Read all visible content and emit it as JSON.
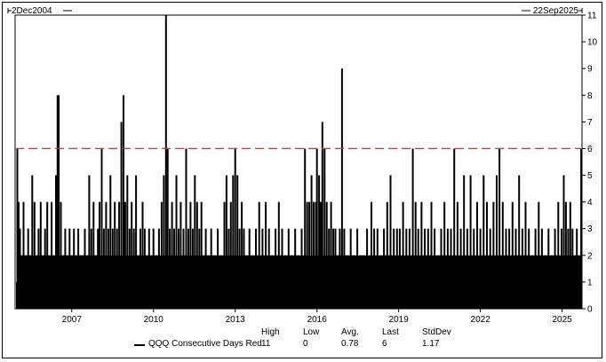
{
  "chart_data": {
    "type": "bar",
    "start_label": "2Dec2004",
    "end_label": "22Sep2025",
    "x_range": [
      2004.92,
      2025.73
    ],
    "ylim": [
      0,
      11
    ],
    "y_ticks": [
      "0",
      "1",
      "2",
      "3",
      "4",
      "5",
      "6",
      "7",
      "8",
      "9",
      "10",
      "11"
    ],
    "x_ticks": [
      {
        "label": "2007",
        "x": 2007.0
      },
      {
        "label": "2010",
        "x": 2010.0
      },
      {
        "label": "2013",
        "x": 2013.0
      },
      {
        "label": "2016",
        "x": 2016.0
      },
      {
        "label": "2019",
        "x": 2019.0
      },
      {
        "label": "2022",
        "x": 2022.0
      },
      {
        "label": "2025",
        "x": 2025.0
      }
    ],
    "threshold": 6,
    "threshold_color": "#e03030",
    "bar_color": "#000000",
    "series": [
      {
        "name": "QQQ Consecutive Days Red",
        "points": [
          [
            2005.0,
            6
          ],
          [
            2005.05,
            4
          ],
          [
            2005.1,
            3
          ],
          [
            2005.16,
            2
          ],
          [
            2005.23,
            4
          ],
          [
            2005.3,
            2
          ],
          [
            2005.4,
            3
          ],
          [
            2005.47,
            2
          ],
          [
            2005.55,
            5
          ],
          [
            2005.63,
            4
          ],
          [
            2005.71,
            2
          ],
          [
            2005.78,
            3
          ],
          [
            2005.86,
            4
          ],
          [
            2005.94,
            2
          ],
          [
            2006.02,
            3
          ],
          [
            2006.1,
            4
          ],
          [
            2006.18,
            2
          ],
          [
            2006.26,
            4
          ],
          [
            2006.34,
            2
          ],
          [
            2006.42,
            5
          ],
          [
            2006.48,
            8
          ],
          [
            2006.52,
            8
          ],
          [
            2006.6,
            4
          ],
          [
            2006.68,
            2
          ],
          [
            2006.76,
            3
          ],
          [
            2006.84,
            2
          ],
          [
            2006.92,
            3
          ],
          [
            2007.0,
            2
          ],
          [
            2007.08,
            3
          ],
          [
            2007.16,
            2
          ],
          [
            2007.24,
            3
          ],
          [
            2007.32,
            2
          ],
          [
            2007.4,
            2
          ],
          [
            2007.48,
            3
          ],
          [
            2007.56,
            2
          ],
          [
            2007.64,
            5
          ],
          [
            2007.72,
            3
          ],
          [
            2007.8,
            4
          ],
          [
            2007.88,
            2
          ],
          [
            2007.96,
            3
          ],
          [
            2008.02,
            4
          ],
          [
            2008.1,
            6
          ],
          [
            2008.18,
            3
          ],
          [
            2008.26,
            4
          ],
          [
            2008.34,
            3
          ],
          [
            2008.42,
            5
          ],
          [
            2008.5,
            3
          ],
          [
            2008.58,
            4
          ],
          [
            2008.66,
            3
          ],
          [
            2008.74,
            4
          ],
          [
            2008.82,
            7
          ],
          [
            2008.9,
            8
          ],
          [
            2008.96,
            4
          ],
          [
            2009.04,
            5
          ],
          [
            2009.12,
            3
          ],
          [
            2009.2,
            4
          ],
          [
            2009.28,
            3
          ],
          [
            2009.36,
            5
          ],
          [
            2009.44,
            2
          ],
          [
            2009.52,
            3
          ],
          [
            2009.6,
            4
          ],
          [
            2009.68,
            3
          ],
          [
            2009.76,
            2
          ],
          [
            2009.84,
            3
          ],
          [
            2009.92,
            2
          ],
          [
            2010.0,
            3
          ],
          [
            2010.1,
            2
          ],
          [
            2010.2,
            3
          ],
          [
            2010.3,
            4
          ],
          [
            2010.38,
            5
          ],
          [
            2010.46,
            11
          ],
          [
            2010.52,
            6
          ],
          [
            2010.6,
            3
          ],
          [
            2010.68,
            4
          ],
          [
            2010.76,
            3
          ],
          [
            2010.84,
            5
          ],
          [
            2010.92,
            3
          ],
          [
            2011.0,
            4
          ],
          [
            2011.1,
            3
          ],
          [
            2011.2,
            6
          ],
          [
            2011.28,
            3
          ],
          [
            2011.36,
            4
          ],
          [
            2011.44,
            3
          ],
          [
            2011.52,
            5
          ],
          [
            2011.6,
            4
          ],
          [
            2011.68,
            3
          ],
          [
            2011.76,
            4
          ],
          [
            2011.84,
            2
          ],
          [
            2011.92,
            3
          ],
          [
            2012.0,
            2
          ],
          [
            2012.12,
            3
          ],
          [
            2012.24,
            2
          ],
          [
            2012.36,
            3
          ],
          [
            2012.48,
            2
          ],
          [
            2012.6,
            4
          ],
          [
            2012.68,
            5
          ],
          [
            2012.76,
            3
          ],
          [
            2012.84,
            4
          ],
          [
            2012.92,
            5
          ],
          [
            2013.0,
            6
          ],
          [
            2013.08,
            5
          ],
          [
            2013.16,
            3
          ],
          [
            2013.24,
            4
          ],
          [
            2013.32,
            3
          ],
          [
            2013.4,
            2
          ],
          [
            2013.52,
            3
          ],
          [
            2013.64,
            2
          ],
          [
            2013.76,
            3
          ],
          [
            2013.88,
            4
          ],
          [
            2014.0,
            3
          ],
          [
            2014.12,
            4
          ],
          [
            2014.24,
            3
          ],
          [
            2014.36,
            2
          ],
          [
            2014.48,
            3
          ],
          [
            2014.6,
            4
          ],
          [
            2014.72,
            3
          ],
          [
            2014.84,
            2
          ],
          [
            2014.96,
            3
          ],
          [
            2015.08,
            2
          ],
          [
            2015.2,
            3
          ],
          [
            2015.32,
            2
          ],
          [
            2015.44,
            3
          ],
          [
            2015.56,
            6
          ],
          [
            2015.64,
            4
          ],
          [
            2015.72,
            4
          ],
          [
            2015.8,
            5
          ],
          [
            2015.88,
            4
          ],
          [
            2015.96,
            4
          ],
          [
            2016.0,
            6
          ],
          [
            2016.08,
            5
          ],
          [
            2016.14,
            4
          ],
          [
            2016.2,
            7
          ],
          [
            2016.28,
            6
          ],
          [
            2016.36,
            4
          ],
          [
            2016.44,
            3
          ],
          [
            2016.52,
            4
          ],
          [
            2016.6,
            3
          ],
          [
            2016.68,
            3
          ],
          [
            2016.76,
            2
          ],
          [
            2016.84,
            3
          ],
          [
            2016.92,
            9
          ],
          [
            2017.0,
            3
          ],
          [
            2017.12,
            2
          ],
          [
            2017.24,
            3
          ],
          [
            2017.36,
            2
          ],
          [
            2017.48,
            3
          ],
          [
            2017.6,
            2
          ],
          [
            2017.72,
            2
          ],
          [
            2017.84,
            3
          ],
          [
            2018.0,
            4
          ],
          [
            2018.1,
            3
          ],
          [
            2018.22,
            3
          ],
          [
            2018.34,
            2
          ],
          [
            2018.46,
            3
          ],
          [
            2018.58,
            4
          ],
          [
            2018.7,
            5
          ],
          [
            2018.82,
            3
          ],
          [
            2018.94,
            3
          ],
          [
            2019.04,
            3
          ],
          [
            2019.16,
            4
          ],
          [
            2019.28,
            3
          ],
          [
            2019.4,
            3
          ],
          [
            2019.52,
            6
          ],
          [
            2019.62,
            4
          ],
          [
            2019.72,
            3
          ],
          [
            2019.84,
            4
          ],
          [
            2019.96,
            3
          ],
          [
            2020.08,
            3
          ],
          [
            2020.2,
            4
          ],
          [
            2020.32,
            3
          ],
          [
            2020.44,
            2
          ],
          [
            2020.56,
            3
          ],
          [
            2020.68,
            4
          ],
          [
            2020.8,
            3
          ],
          [
            2020.92,
            3
          ],
          [
            2021.04,
            6
          ],
          [
            2021.16,
            4
          ],
          [
            2021.28,
            3
          ],
          [
            2021.4,
            5
          ],
          [
            2021.52,
            3
          ],
          [
            2021.64,
            5
          ],
          [
            2021.76,
            3
          ],
          [
            2021.88,
            4
          ],
          [
            2022.0,
            3
          ],
          [
            2022.12,
            5
          ],
          [
            2022.24,
            4
          ],
          [
            2022.36,
            3
          ],
          [
            2022.48,
            4
          ],
          [
            2022.6,
            5
          ],
          [
            2022.7,
            6
          ],
          [
            2022.82,
            4
          ],
          [
            2022.94,
            3
          ],
          [
            2023.06,
            3
          ],
          [
            2023.18,
            4
          ],
          [
            2023.3,
            3
          ],
          [
            2023.42,
            5
          ],
          [
            2023.54,
            3
          ],
          [
            2023.66,
            4
          ],
          [
            2023.78,
            3
          ],
          [
            2023.9,
            2
          ],
          [
            2024.02,
            3
          ],
          [
            2024.14,
            4
          ],
          [
            2024.26,
            3
          ],
          [
            2024.38,
            2
          ],
          [
            2024.5,
            3
          ],
          [
            2024.62,
            2
          ],
          [
            2024.74,
            3
          ],
          [
            2024.86,
            4
          ],
          [
            2024.98,
            3
          ],
          [
            2025.06,
            5
          ],
          [
            2025.14,
            4
          ],
          [
            2025.22,
            3
          ],
          [
            2025.3,
            4
          ],
          [
            2025.38,
            3
          ],
          [
            2025.46,
            2
          ],
          [
            2025.54,
            3
          ],
          [
            2025.62,
            2
          ],
          [
            2025.7,
            6
          ]
        ]
      }
    ],
    "legend_headers": [
      "High",
      "Low",
      "Avg.",
      "Last",
      "StdDev"
    ],
    "legend_values": [
      "11",
      "0",
      "0.78",
      "6",
      "1.17"
    ]
  }
}
